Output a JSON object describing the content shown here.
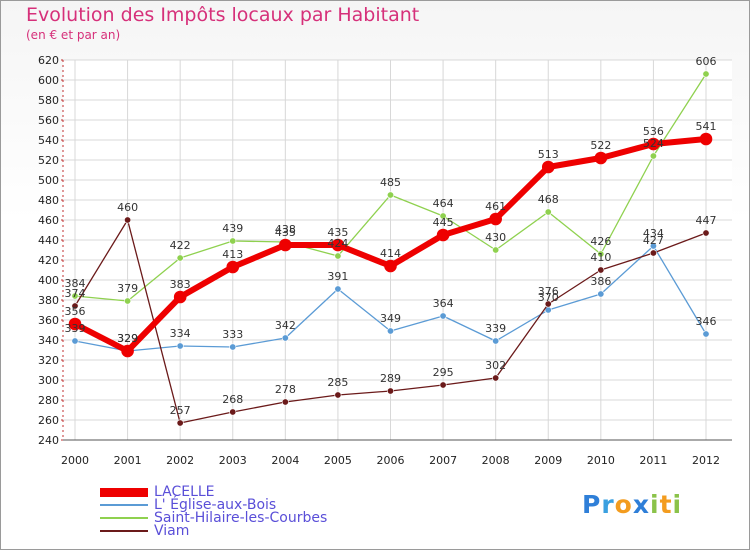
{
  "header": {
    "title": "Evolution des Impôts locaux par Habitant",
    "subtitle": "(en € et par an)"
  },
  "logo": {
    "text": "Proxiti",
    "letters": [
      {
        "ch": "P",
        "color": "#2f7fd8"
      },
      {
        "ch": "r",
        "color": "#3aa0e0"
      },
      {
        "ch": "o",
        "color": "#f39c1f"
      },
      {
        "ch": "x",
        "color": "#2f7fd8"
      },
      {
        "ch": "i",
        "color": "#8bc34a"
      },
      {
        "ch": "t",
        "color": "#f39c1f"
      },
      {
        "ch": "i",
        "color": "#8bc34a"
      }
    ]
  },
  "chart_data": {
    "type": "line",
    "title": "Evolution des Impôts locaux par Habitant",
    "subtitle": "(en € et par an)",
    "xlabel": "",
    "ylabel": "",
    "ylim": [
      240,
      620
    ],
    "yticks": [
      240,
      260,
      280,
      300,
      320,
      340,
      360,
      380,
      400,
      420,
      440,
      460,
      480,
      500,
      520,
      540,
      560,
      580,
      600,
      620
    ],
    "categories": [
      "2000",
      "2001",
      "2002",
      "2003",
      "2004",
      "2005",
      "2006",
      "2007",
      "2008",
      "2009",
      "2010",
      "2011",
      "2012"
    ],
    "grid": true,
    "legend": "bottom-left",
    "series": [
      {
        "name": "LACELLE",
        "color": "#ee0000",
        "values": [
          356,
          329,
          383,
          413,
          435,
          435,
          414,
          445,
          461,
          513,
          522,
          536,
          541
        ]
      },
      {
        "name": "L' Église-aux-Bois",
        "color": "#5b9bd5",
        "values": [
          339,
          329,
          334,
          333,
          342,
          391,
          349,
          364,
          339,
          370,
          386,
          434,
          346
        ]
      },
      {
        "name": "Saint-Hilaire-les-Courbes",
        "color": "#8fd14f",
        "values": [
          384,
          379,
          422,
          439,
          438,
          424,
          485,
          464,
          430,
          468,
          426,
          524,
          606
        ]
      },
      {
        "name": "Viam",
        "color": "#6b1a1a",
        "values": [
          374,
          460,
          257,
          268,
          278,
          285,
          289,
          295,
          302,
          376,
          410,
          427,
          447
        ]
      }
    ]
  }
}
